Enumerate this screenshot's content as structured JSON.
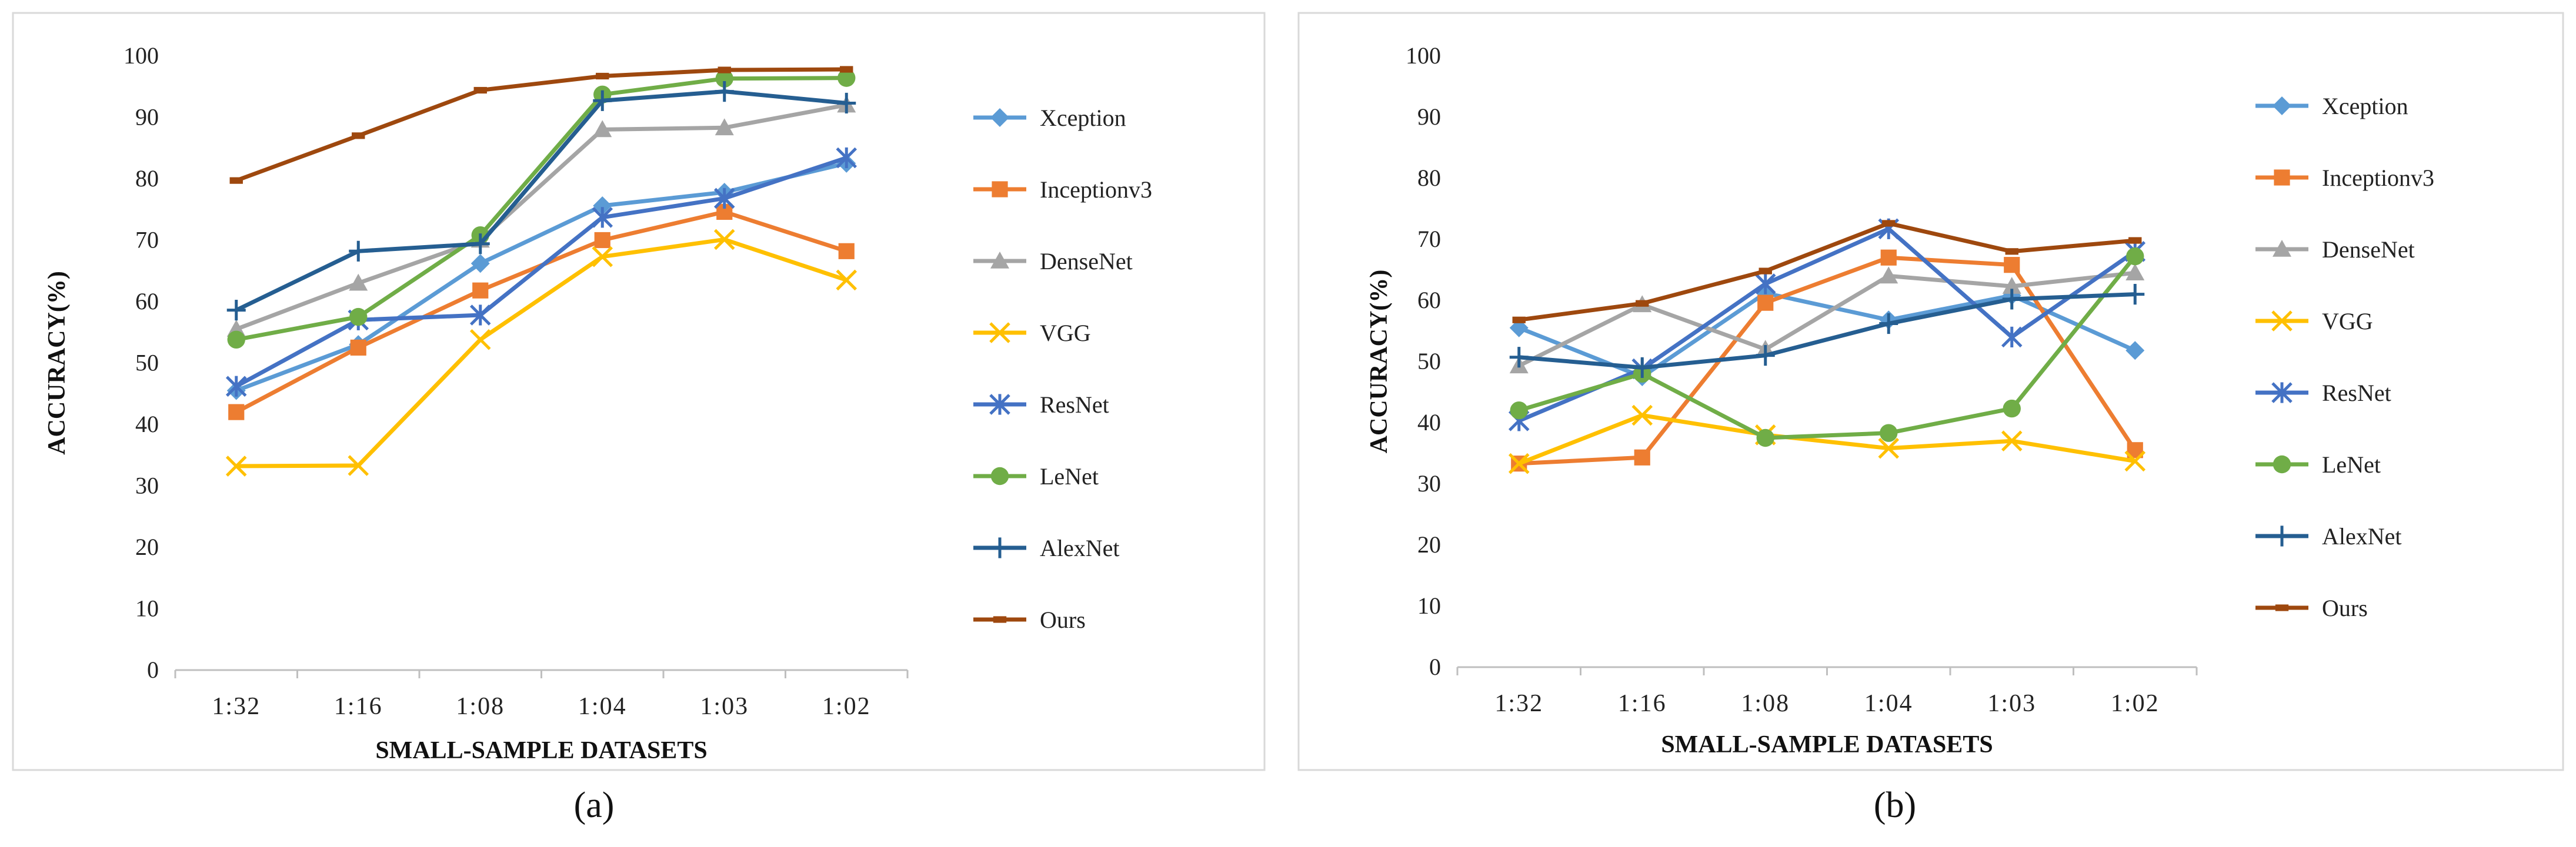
{
  "chart_data": [
    {
      "type": "line",
      "caption": "(a)",
      "title": "",
      "xlabel": "SMALL-SAMPLE DATASETS",
      "ylabel": "ACCURACY(%)",
      "ylim": [
        0,
        100
      ],
      "yticks": [
        0,
        10,
        20,
        30,
        40,
        50,
        60,
        70,
        80,
        90,
        100
      ],
      "grid": false,
      "legend_position": "right",
      "categories": [
        "1:32",
        "1:16",
        "1:08",
        "1:04",
        "1:03",
        "1:02"
      ],
      "series": [
        {
          "name": "Xception",
          "color": "#5B9BD5",
          "marker": "diamond",
          "values": [
            45.5,
            53,
            66.2,
            75.6,
            77.8,
            82.5
          ]
        },
        {
          "name": "Inceptionv3",
          "color": "#ED7D31",
          "marker": "square",
          "values": [
            42,
            52.5,
            61.8,
            70,
            74.6,
            68.2
          ]
        },
        {
          "name": "DenseNet",
          "color": "#A5A5A5",
          "marker": "triangle",
          "values": [
            55.5,
            63,
            70,
            88,
            88.3,
            92
          ]
        },
        {
          "name": "VGG",
          "color": "#FFC000",
          "marker": "x",
          "values": [
            33.2,
            33.3,
            53.8,
            67.3,
            70.1,
            63.5
          ]
        },
        {
          "name": "ResNet",
          "color": "#4472C4",
          "marker": "star",
          "values": [
            46.2,
            57,
            57.8,
            73.7,
            76.8,
            83.4
          ]
        },
        {
          "name": "LeNet",
          "color": "#70AD47",
          "marker": "circle",
          "values": [
            53.8,
            57.5,
            70.8,
            93.7,
            96.3,
            96.4
          ]
        },
        {
          "name": "AlexNet",
          "color": "#255E91",
          "marker": "plus",
          "values": [
            58.6,
            68.2,
            69.4,
            92.7,
            94.2,
            92.3
          ]
        },
        {
          "name": "Ours",
          "color": "#9E480E",
          "marker": "dash",
          "values": [
            79.7,
            87,
            94.4,
            96.7,
            97.7,
            97.8
          ]
        }
      ]
    },
    {
      "type": "line",
      "caption": "(b)",
      "title": "",
      "xlabel": "SMALL-SAMPLE DATASETS",
      "ylabel": "ACCURACY(%)",
      "ylim": [
        0,
        100
      ],
      "yticks": [
        0,
        10,
        20,
        30,
        40,
        50,
        60,
        70,
        80,
        90,
        100
      ],
      "grid": false,
      "legend_position": "right",
      "categories": [
        "1:32",
        "1:16",
        "1:08",
        "1:04",
        "1:03",
        "1:02"
      ],
      "series": [
        {
          "name": "Xception",
          "color": "#5B9BD5",
          "marker": "diamond",
          "values": [
            55.5,
            47.5,
            61.2,
            56.8,
            60.8,
            51.8
          ]
        },
        {
          "name": "Inceptionv3",
          "color": "#ED7D31",
          "marker": "square",
          "values": [
            33.3,
            34.3,
            59.6,
            67,
            65.8,
            35.5
          ]
        },
        {
          "name": "DenseNet",
          "color": "#A5A5A5",
          "marker": "triangle",
          "values": [
            49.3,
            59.3,
            52,
            64,
            62.3,
            64.5
          ]
        },
        {
          "name": "VGG",
          "color": "#FFC000",
          "marker": "x",
          "values": [
            33.3,
            41.2,
            38,
            35.8,
            37,
            33.7
          ]
        },
        {
          "name": "ResNet",
          "color": "#4472C4",
          "marker": "star",
          "values": [
            40.3,
            48.8,
            62.7,
            71.7,
            54,
            68
          ]
        },
        {
          "name": "LeNet",
          "color": "#70AD47",
          "marker": "circle",
          "values": [
            42,
            48,
            37.5,
            38.3,
            42.3,
            67.2
          ]
        },
        {
          "name": "AlexNet",
          "color": "#255E91",
          "marker": "plus",
          "values": [
            50.7,
            49,
            51,
            56.2,
            60.2,
            61
          ]
        },
        {
          "name": "Ours",
          "color": "#9E480E",
          "marker": "dash",
          "values": [
            56.8,
            59.5,
            64.8,
            72.6,
            68,
            69.8
          ]
        }
      ]
    }
  ]
}
